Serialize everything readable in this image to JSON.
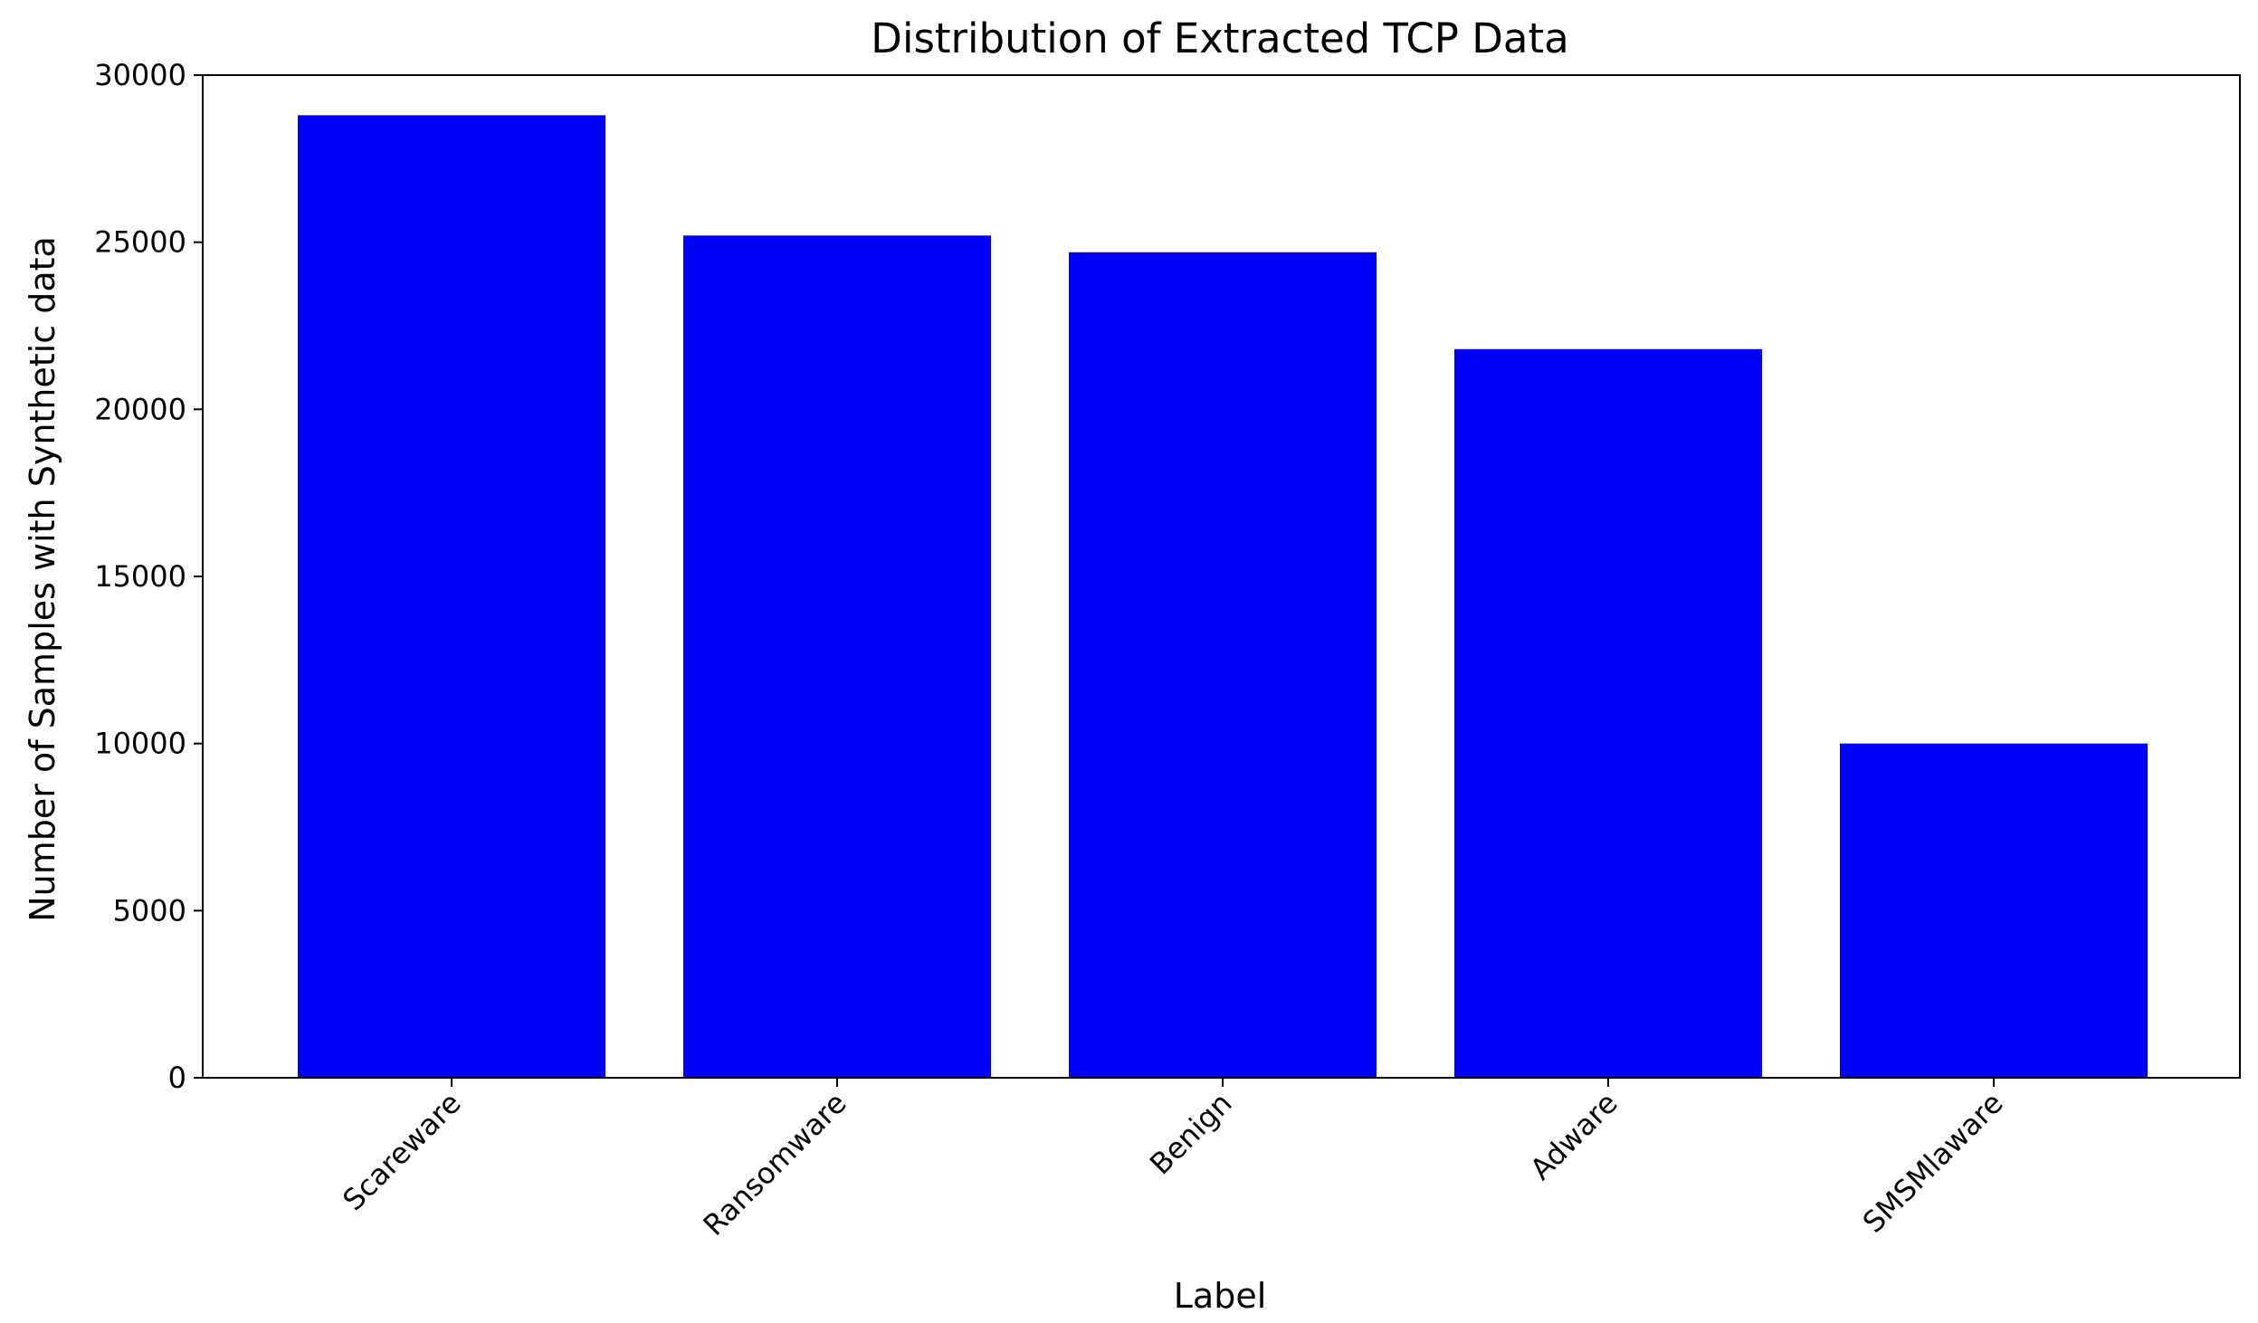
{
  "chart_data": {
    "type": "bar",
    "title": "Distribution of Extracted TCP Data",
    "xlabel": "Label",
    "ylabel": "Number of Samples with Synthetic data",
    "categories": [
      "Scareware",
      "Ransomware",
      "Benign",
      "Adware",
      "SMSMlaware"
    ],
    "values": [
      28800,
      25200,
      24700,
      21800,
      10000
    ],
    "ylim": [
      0,
      30000
    ],
    "yticks": [
      0,
      5000,
      10000,
      15000,
      20000,
      25000,
      30000
    ],
    "ytick_labels": [
      "0",
      "5000",
      "10000",
      "15000",
      "20000",
      "25000",
      "30000"
    ],
    "bar_color": "#0000ff",
    "grid": false,
    "legend": "none"
  }
}
